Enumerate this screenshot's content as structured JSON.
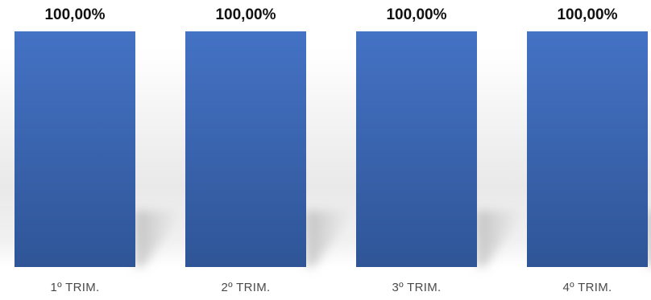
{
  "chart_data": {
    "type": "bar",
    "categories": [
      "1º TRIM.",
      "2º TRIM.",
      "3º TRIM.",
      "4º TRIM."
    ],
    "values": [
      100,
      100,
      100,
      100
    ],
    "data_labels": [
      "100,00%",
      "100,00%",
      "100,00%",
      "100,00%"
    ],
    "ylim": [
      0,
      100
    ],
    "grid": false,
    "legend": "none",
    "colors": {
      "bar_top": "#4472c4",
      "bar_bottom": "#2f5597",
      "label_text": "#111111",
      "category_text": "#4a4a4a"
    }
  }
}
